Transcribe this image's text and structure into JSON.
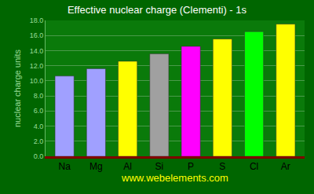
{
  "chart_data": {
    "type": "bar",
    "title": "Effective nuclear charge (Clementi) - 1s",
    "ylabel": "nuclear charge units",
    "xlabel": "www.webelements.com",
    "categories": [
      "Na",
      "Mg",
      "Al",
      "Si",
      "P",
      "S",
      "Cl",
      "Ar"
    ],
    "values": [
      10.63,
      11.61,
      12.59,
      13.57,
      14.56,
      15.54,
      16.52,
      17.51
    ],
    "colors": [
      "#a0a0ff",
      "#a0a0ff",
      "#ffff00",
      "#a0a0a0",
      "#ff00ff",
      "#ffff00",
      "#00ff00",
      "#ffff00"
    ],
    "ylim": [
      0,
      18
    ],
    "yticks": [
      {
        "value": 0,
        "label": "0.0"
      },
      {
        "value": 2,
        "label": "2.0"
      },
      {
        "value": 4,
        "label": "4.0"
      },
      {
        "value": 6,
        "label": "6.0"
      },
      {
        "value": 8,
        "label": "8.0"
      },
      {
        "value": 10,
        "label": "10.0"
      },
      {
        "value": 12,
        "label": "12.0"
      },
      {
        "value": 14,
        "label": "14.0"
      },
      {
        "value": 16,
        "label": "16.0"
      },
      {
        "value": 18,
        "label": "18.0"
      }
    ],
    "grid": true
  }
}
